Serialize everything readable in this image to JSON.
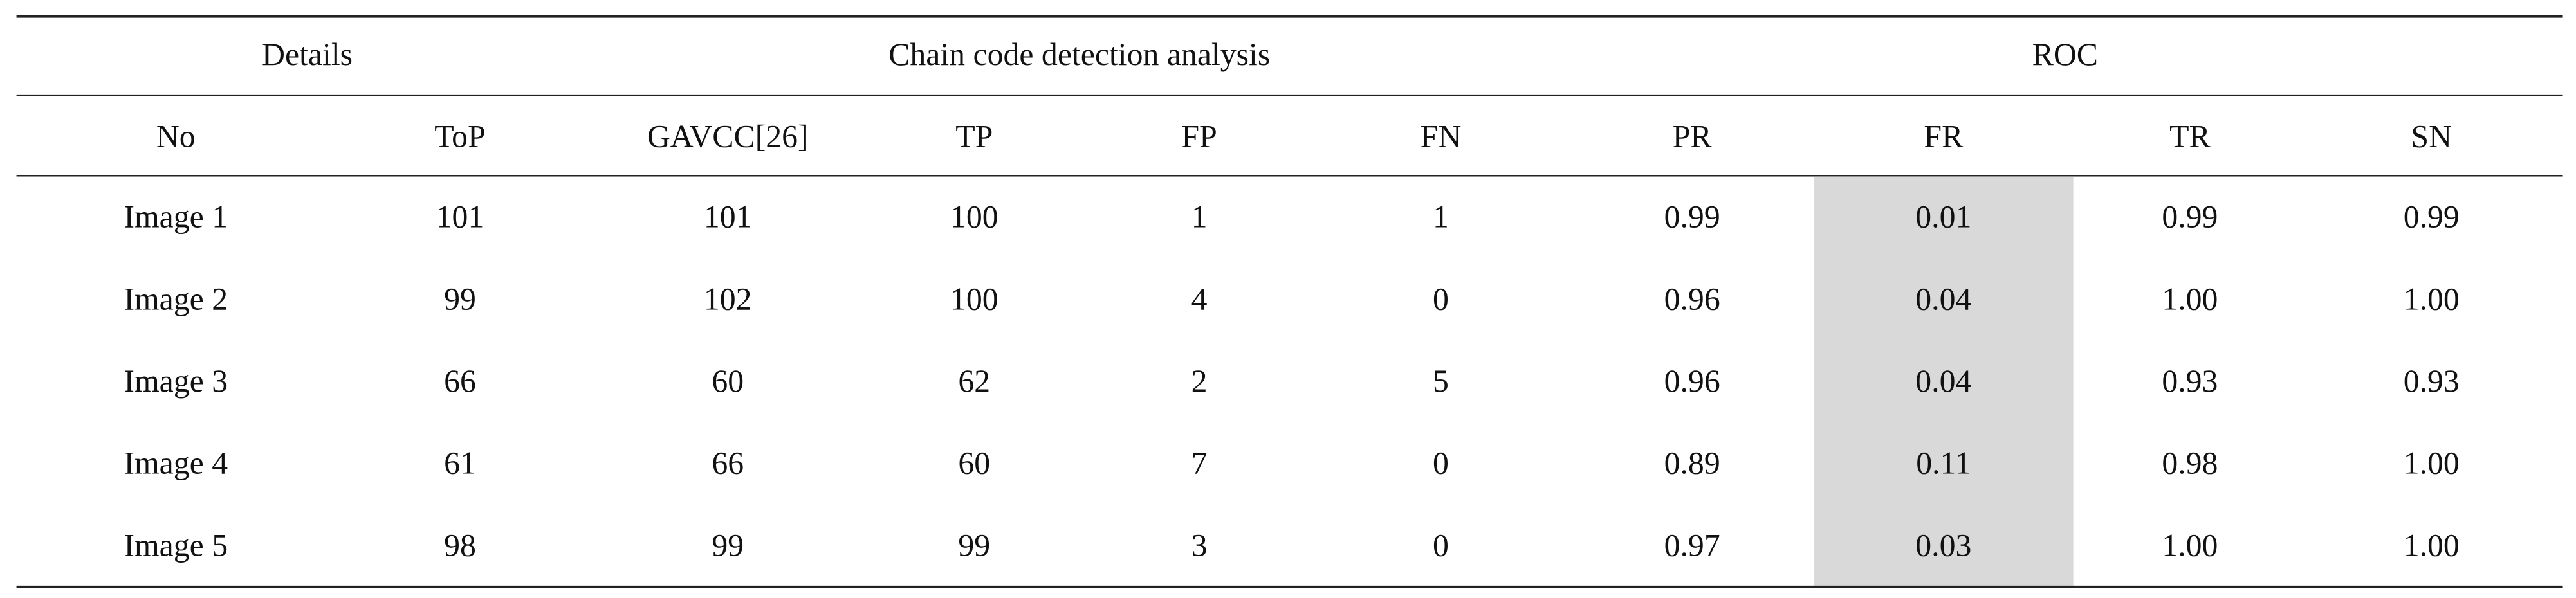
{
  "table": {
    "groups": [
      "Details",
      "Chain code detection analysis",
      "ROC"
    ],
    "columns": [
      "No",
      "ToP",
      "GAVCC[26]",
      "TP",
      "FP",
      "FN",
      "PR",
      "FR",
      "TR",
      "SN"
    ],
    "rows": [
      [
        "Image 1",
        "101",
        "101",
        "100",
        "1",
        "1",
        "0.99",
        "0.01",
        "0.99",
        "0.99"
      ],
      [
        "Image 2",
        "99",
        "102",
        "100",
        "4",
        "0",
        "0.96",
        "0.04",
        "1.00",
        "1.00"
      ],
      [
        "Image 3",
        "66",
        "60",
        "62",
        "2",
        "5",
        "0.96",
        "0.04",
        "0.93",
        "0.93"
      ],
      [
        "Image 4",
        "61",
        "66",
        "60",
        "7",
        "0",
        "0.89",
        "0.11",
        "0.98",
        "1.00"
      ],
      [
        "Image 5",
        "98",
        "99",
        "99",
        "3",
        "0",
        "0.97",
        "0.03",
        "1.00",
        "1.00"
      ]
    ]
  }
}
